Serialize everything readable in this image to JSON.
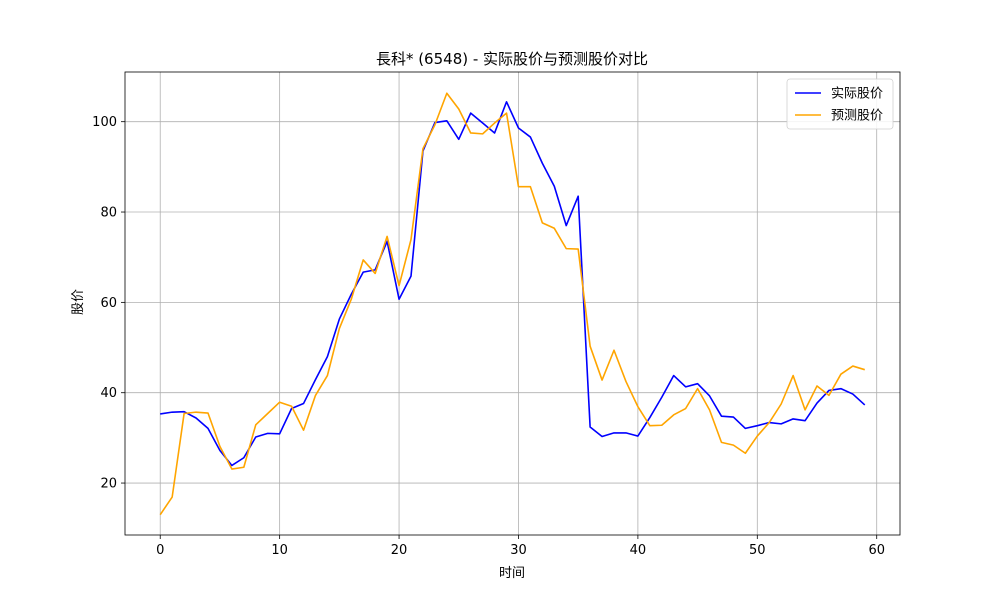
{
  "chart_data": {
    "type": "line",
    "title": "長科* (6548) - 实际股价与预测股价对比",
    "xlabel": "时间",
    "ylabel": "股价",
    "xlim": [
      -2.95,
      61.95
    ],
    "ylim": [
      8.5,
      111
    ],
    "xticks": [
      0,
      10,
      20,
      30,
      40,
      50,
      60
    ],
    "yticks": [
      20,
      40,
      60,
      80,
      100
    ],
    "grid": true,
    "legend_position": "top-right",
    "x": [
      0,
      1,
      2,
      3,
      4,
      5,
      6,
      7,
      8,
      9,
      10,
      11,
      12,
      13,
      14,
      15,
      16,
      17,
      18,
      19,
      20,
      21,
      22,
      23,
      24,
      25,
      26,
      27,
      28,
      29,
      30,
      31,
      32,
      33,
      34,
      35,
      36,
      37,
      38,
      39,
      40,
      41,
      42,
      43,
      44,
      45,
      46,
      47,
      48,
      49,
      50,
      51,
      52,
      53,
      54,
      55,
      56,
      57,
      58,
      59
    ],
    "series": [
      {
        "name": "实际股价",
        "color": "#0000ff",
        "values": [
          35.3,
          35.7,
          35.8,
          34.4,
          32.1,
          27.2,
          23.9,
          25.6,
          30.2,
          31.0,
          30.9,
          36.5,
          37.6,
          42.9,
          48.0,
          56.3,
          61.8,
          66.7,
          67.2,
          73.5,
          60.7,
          65.8,
          93.5,
          99.8,
          100.2,
          96.1,
          101.9,
          99.7,
          97.5,
          104.4,
          98.6,
          96.6,
          90.8,
          85.7,
          77.0,
          83.5,
          32.4,
          30.3,
          31.1,
          31.1,
          30.4,
          34.5,
          39.0,
          43.8,
          41.3,
          42.0,
          39.3,
          34.8,
          34.6,
          32.1,
          32.7,
          33.4,
          33.1,
          34.2,
          33.8,
          37.7,
          40.5,
          40.9,
          39.7,
          37.3
        ]
      },
      {
        "name": "预测股价",
        "color": "#ffa500",
        "values": [
          13.0,
          16.9,
          35.4,
          35.7,
          35.5,
          28.1,
          23.1,
          23.5,
          32.9,
          35.4,
          37.9,
          37.0,
          31.7,
          39.4,
          43.8,
          54.2,
          60.7,
          69.4,
          66.4,
          74.6,
          63.7,
          73.9,
          94.0,
          99.3,
          106.3,
          102.8,
          97.5,
          97.3,
          99.7,
          101.9,
          85.6,
          85.6,
          77.6,
          76.4,
          71.9,
          71.8,
          50.3,
          42.8,
          49.4,
          42.5,
          36.9,
          32.7,
          32.8,
          35.1,
          36.5,
          40.9,
          36.2,
          29.0,
          28.4,
          26.6,
          30.4,
          33.4,
          37.5,
          43.8,
          36.2,
          41.5,
          39.4,
          44.1,
          45.9,
          45.1
        ]
      }
    ]
  }
}
